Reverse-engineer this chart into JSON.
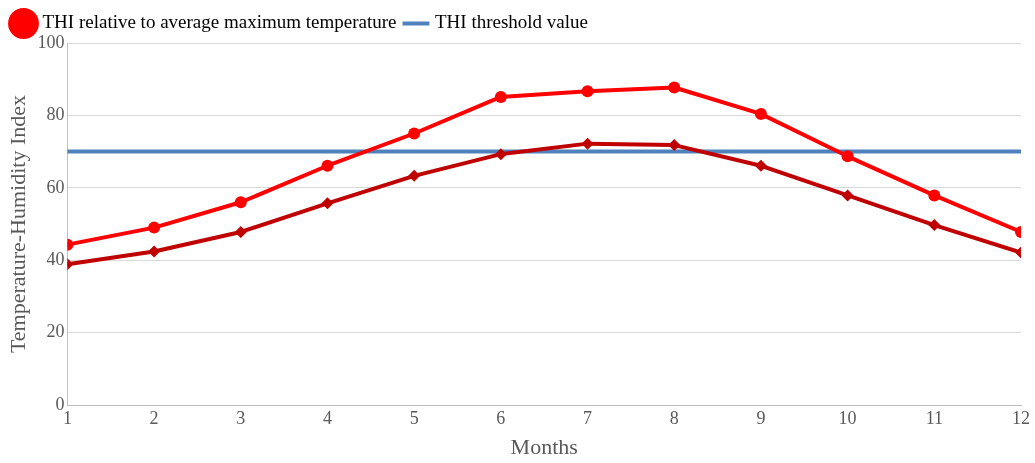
{
  "chart_data": {
    "type": "line",
    "xlabel": "Months",
    "ylabel": "Temperature-Humidity Index",
    "x": [
      1,
      2,
      3,
      4,
      5,
      6,
      7,
      8,
      9,
      10,
      11,
      12
    ],
    "xlim": [
      1,
      12
    ],
    "xticks": [
      1,
      2,
      3,
      4,
      5,
      6,
      7,
      8,
      9,
      10,
      11,
      12
    ],
    "ylim": [
      0,
      100
    ],
    "yticks": [
      0,
      20,
      40,
      60,
      80,
      100
    ],
    "grid": "y",
    "legend": "top left",
    "series": [
      {
        "name": "THI relative to average maximum temperature",
        "color": "#ff0000",
        "marker": "circle",
        "values": [
          44.3,
          49,
          56,
          66.1,
          75,
          85.1,
          86.7,
          87.7,
          80.4,
          68.7,
          57.9,
          47.8
        ]
      },
      {
        "color": "#c00000",
        "marker": "diamond",
        "values": [
          38.9,
          42.4,
          47.8,
          55.7,
          63.3,
          69.3,
          72.2,
          71.8,
          66.1,
          57.9,
          49.7,
          42.1
        ]
      },
      {
        "name": "THI threshold value",
        "color": "#4f81bd",
        "marker": "none",
        "values": [
          70,
          70,
          70,
          70,
          70,
          70,
          70,
          70,
          70,
          70,
          70,
          70
        ]
      }
    ]
  }
}
